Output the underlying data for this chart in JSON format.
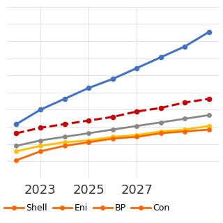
{
  "years": [
    2022,
    2023,
    2024,
    2025,
    2026,
    2027,
    2028,
    2029,
    2030
  ],
  "series": {
    "Blue": {
      "values": [
        75,
        83,
        89,
        95,
        100,
        106,
        112,
        118,
        126
      ],
      "color": "#4472C4",
      "linestyle": "solid",
      "linewidth": 2.2,
      "marker": "o",
      "markersize": 5.5,
      "zorder": 5,
      "legend": false
    },
    "Con": {
      "values": [
        70,
        73,
        75,
        77,
        79,
        82,
        84,
        87,
        89
      ],
      "color": "#CC0000",
      "linestyle": "dashed",
      "linewidth": 2.2,
      "marker": "o",
      "markersize": 5.5,
      "zorder": 4,
      "legend": true,
      "label": "Con"
    },
    "Eni": {
      "values": [
        63,
        66,
        68,
        70,
        72,
        74,
        76,
        78,
        80
      ],
      "color": "#888888",
      "linestyle": "solid",
      "linewidth": 2.0,
      "marker": "o",
      "markersize": 5,
      "zorder": 3,
      "legend": true,
      "label": "Eni"
    },
    "BP": {
      "values": [
        60,
        63,
        65,
        66,
        68,
        69,
        71,
        72,
        74
      ],
      "color": "#FFC000",
      "linestyle": "solid",
      "linewidth": 2.0,
      "marker": "o",
      "markersize": 5,
      "zorder": 3,
      "legend": true,
      "label": "BP"
    },
    "Shell": {
      "values": [
        55,
        60,
        63,
        65,
        67,
        68,
        70,
        71,
        72
      ],
      "color": "#FF6600",
      "linestyle": "solid",
      "linewidth": 2.0,
      "marker": "o",
      "markersize": 5,
      "zorder": 3,
      "legend": true,
      "label": "Shell"
    }
  },
  "series_order": [
    "Blue",
    "Con",
    "Eni",
    "BP",
    "Shell"
  ],
  "legend_order": [
    "Shell",
    "Eni",
    "BP",
    "Con"
  ],
  "xlim": [
    2021.6,
    2030.4
  ],
  "ylim": [
    45,
    140
  ],
  "xticks": [
    2023,
    2025,
    2027
  ],
  "xtick_fontsize": 13,
  "grid_color": "#DEDEDE",
  "grid_linewidth": 0.6,
  "bg_color": "#FFFFFF",
  "n_hgrid": 11,
  "legend_fontsize": 9,
  "legend_handlelength": 2.2,
  "legend_columnspacing": 0.6,
  "legend_handletextpad": 0.3
}
